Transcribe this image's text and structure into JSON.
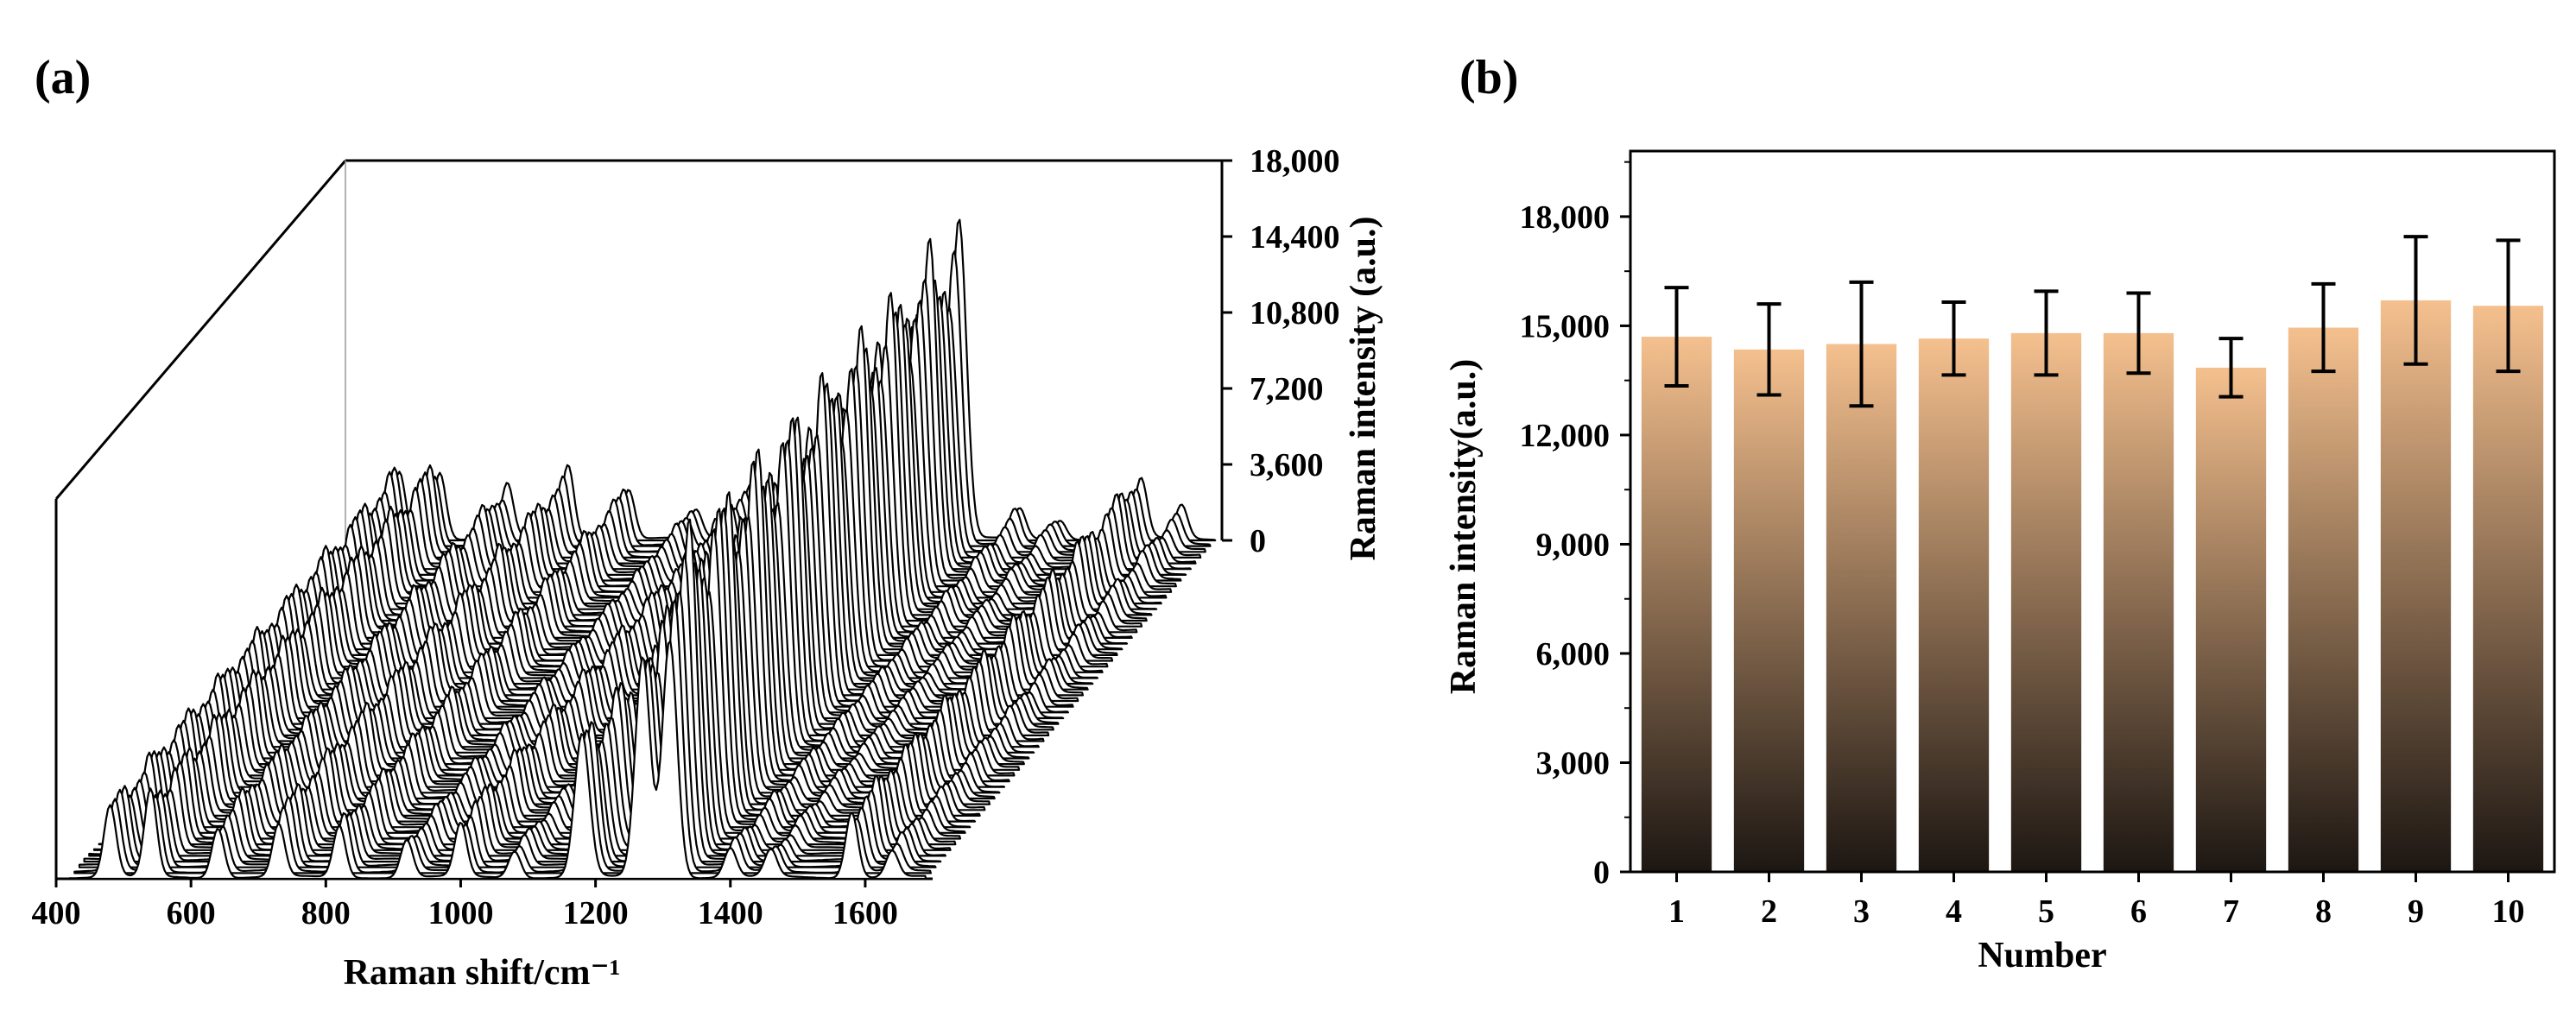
{
  "colors": {
    "bar_top": "#f5c08e",
    "bar_bottom": "#1c1612",
    "axis": "#000000",
    "spectrum_line": "#000000",
    "spectrum_fill": "#ffffff"
  },
  "chart_data": [
    {
      "panel_label": "(a)",
      "type": "line",
      "style": "3d-waterfall",
      "x_label": "Raman shift/cm⁻¹",
      "y_label": "Raman intensity (a.u.)",
      "x_range": [
        400,
        1700
      ],
      "x_ticks": [
        400,
        600,
        800,
        1000,
        1200,
        1400,
        1600
      ],
      "x_tick_labels": [
        "400",
        "600",
        "800",
        "1000",
        "1200",
        "1400",
        "1600"
      ],
      "y_range": [
        0,
        18000
      ],
      "y_ticks": [
        0,
        3600,
        7200,
        10800,
        14400,
        18000
      ],
      "y_tick_labels": [
        "0",
        "3,600",
        "7,200",
        "10,800",
        "14,400",
        "18,000"
      ],
      "series_count": 60,
      "peaks": [
        {
          "shift": 480,
          "intensity": 3200
        },
        {
          "shift": 540,
          "intensity": 3600
        },
        {
          "shift": 640,
          "intensity": 2500
        },
        {
          "shift": 730,
          "intensity": 3000
        },
        {
          "shift": 820,
          "intensity": 2400
        },
        {
          "shift": 920,
          "intensity": 1600
        },
        {
          "shift": 1000,
          "intensity": 2600
        },
        {
          "shift": 1080,
          "intensity": 1300
        },
        {
          "shift": 1180,
          "intensity": 6200
        },
        {
          "shift": 1270,
          "intensity": 10500
        },
        {
          "shift": 1310,
          "intensity": 13500
        },
        {
          "shift": 1400,
          "intensity": 1400
        },
        {
          "shift": 1460,
          "intensity": 1100
        },
        {
          "shift": 1580,
          "intensity": 3000
        },
        {
          "shift": 1640,
          "intensity": 1400
        }
      ]
    },
    {
      "panel_label": "(b)",
      "type": "bar",
      "x_label": "Number",
      "y_label": "Raman intensity(a.u.)",
      "categories": [
        "1",
        "2",
        "3",
        "4",
        "5",
        "6",
        "7",
        "8",
        "9",
        "10"
      ],
      "values": [
        14700,
        14350,
        14500,
        14650,
        14800,
        14800,
        13850,
        14950,
        15700,
        15550
      ],
      "errors": [
        1350,
        1250,
        1700,
        1000,
        1150,
        1100,
        800,
        1200,
        1750,
        1800
      ],
      "y_range": [
        0,
        19800
      ],
      "y_ticks": [
        0,
        3000,
        6000,
        9000,
        12000,
        15000,
        18000
      ],
      "y_tick_labels": [
        "0",
        "3,000",
        "6,000",
        "9,000",
        "12,000",
        "15,000",
        "18,000"
      ]
    }
  ]
}
